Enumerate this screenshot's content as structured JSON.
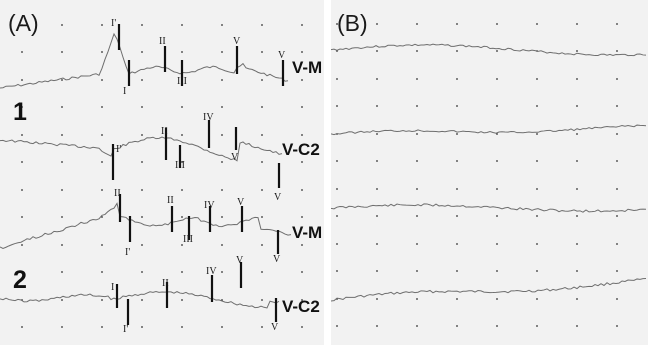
{
  "panels": {
    "a": {
      "label": "(A)",
      "recordings": [
        "1",
        "2"
      ],
      "leads": [
        "V-M",
        "V-C2",
        "V-M",
        "V-C2"
      ]
    },
    "b": {
      "label": "(B)"
    }
  },
  "marker_labels": {
    "trace1": [
      "I'",
      "I",
      "II",
      "III",
      "V",
      "V"
    ],
    "trace2": [
      "I'",
      "II",
      "III",
      "IV",
      "V",
      "V"
    ],
    "trace3": [
      "II",
      "I'",
      "II",
      "III",
      "IV",
      "V",
      "V"
    ],
    "trace4": [
      "I",
      "I'",
      "II",
      "IV",
      "V",
      "V"
    ]
  },
  "colors": {
    "background": "#f2f2f2",
    "trace": "#6e6e6e",
    "marker": "#111111",
    "grid_dot": "#333333"
  }
}
